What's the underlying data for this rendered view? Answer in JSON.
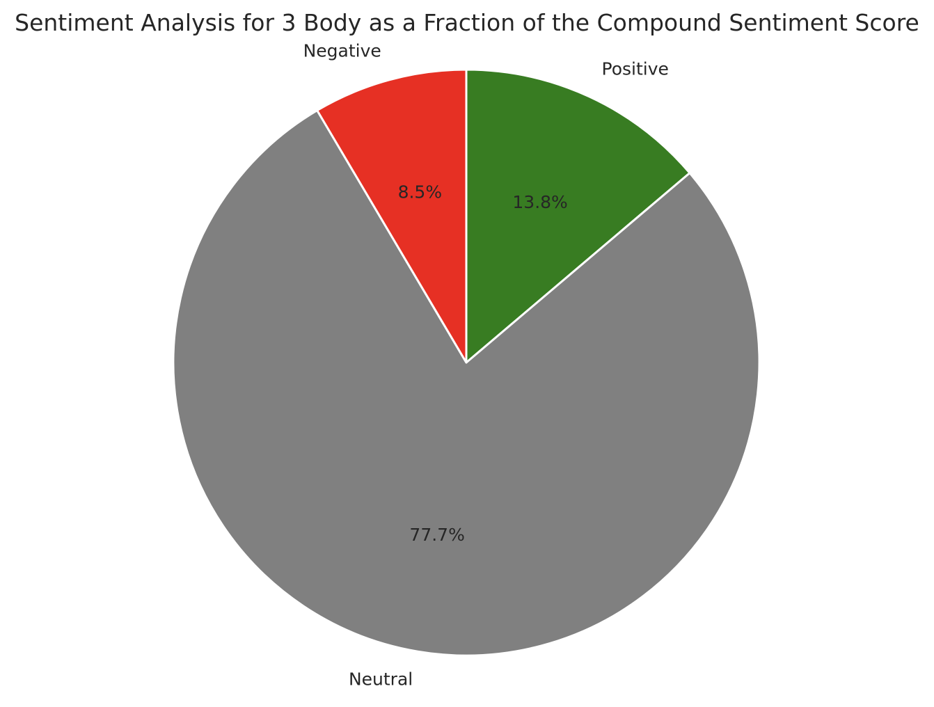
{
  "chart_data": {
    "type": "pie",
    "title": "Sentiment Analysis for 3 Body as a Fraction of the Compound Sentiment Score",
    "slices": [
      {
        "label": "Positive",
        "value": 13.8,
        "pct_label": "13.8%",
        "color": "#387c22"
      },
      {
        "label": "Neutral",
        "value": 77.7,
        "pct_label": "77.7%",
        "color": "#808080"
      },
      {
        "label": "Negative",
        "value": 8.5,
        "pct_label": "8.5%",
        "color": "#e63024"
      }
    ],
    "start_angle_deg": 90,
    "direction": "clockwise"
  }
}
